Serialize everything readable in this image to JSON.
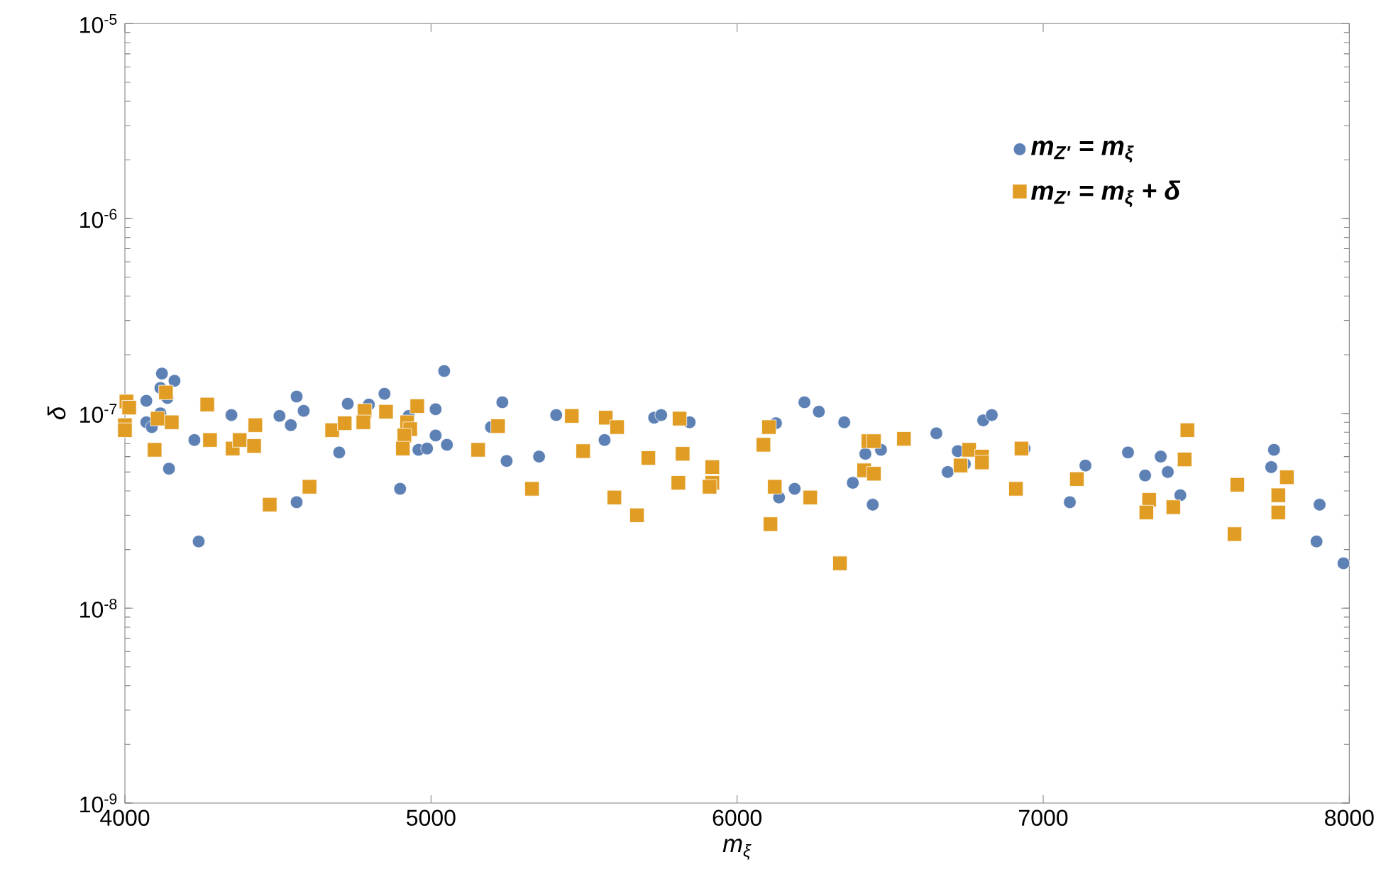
{
  "chart_data": {
    "type": "scatter",
    "xlabel": "m$_{ξ}$",
    "ylabel": "δ",
    "log": "y",
    "grid": false,
    "legend": "top right",
    "xlim": [
      4000,
      8000
    ],
    "xticks": [
      4000,
      5000,
      6000,
      7000,
      8000
    ],
    "ylim": [
      1e-09,
      1e-05
    ],
    "yticks": [
      {
        "value": 1e-09,
        "label": "10$^{-9}$"
      },
      {
        "value": 1e-08,
        "label": "10$^{-8}$"
      },
      {
        "value": 1e-07,
        "label": "10$^{-7}$"
      },
      {
        "value": 1e-06,
        "label": "10$^{-6}$"
      },
      {
        "value": 1e-05,
        "label": "10$^{-5}$"
      }
    ],
    "series": [
      {
        "name": "m$_{Z'}$ = m$_{ξ}$",
        "color": "#5e81b5",
        "marker": "circle",
        "x": [
          4121,
          4162,
          4116,
          4139,
          4070,
          4070,
          4088,
          4116,
          4144,
          4227,
          4241,
          4348,
          4505,
          4542,
          4561,
          4584,
          4561,
          4700,
          4728,
          4797,
          4848,
          4927,
          4899,
          4959,
          4987,
          5015,
          5052,
          5015,
          5043,
          5233,
          5196,
          5247,
          5353,
          5409,
          5567,
          5729,
          5752,
          5845,
          6127,
          6220,
          6267,
          6350,
          6419,
          6470,
          6378,
          6443,
          6137,
          6188,
          6651,
          6688,
          6721,
          6744,
          6804,
          6832,
          6939,
          7138,
          7087,
          7277,
          7384,
          7333,
          7407,
          7448,
          7754,
          7745,
          7903,
          7893,
          7981
        ],
        "values": [
          1.6e-07,
          1.47e-07,
          1.35e-07,
          1.2e-07,
          1.16e-07,
          9e-08,
          8.5e-08,
          1e-07,
          5.2e-08,
          7.3e-08,
          2.2e-08,
          9.8e-08,
          9.7e-08,
          8.7e-08,
          1.22e-07,
          1.03e-07,
          3.5e-08,
          6.3e-08,
          1.12e-07,
          1.11e-07,
          1.26e-07,
          9.7e-08,
          4.1e-08,
          6.5e-08,
          6.6e-08,
          7.7e-08,
          6.9e-08,
          1.05e-07,
          1.65e-07,
          1.14e-07,
          8.5e-08,
          5.7e-08,
          6e-08,
          9.8e-08,
          7.3e-08,
          9.5e-08,
          9.8e-08,
          9e-08,
          8.9e-08,
          1.14e-07,
          1.02e-07,
          9e-08,
          6.2e-08,
          6.5e-08,
          4.4e-08,
          3.4e-08,
          3.7e-08,
          4.1e-08,
          7.9e-08,
          5e-08,
          6.4e-08,
          5.5e-08,
          9.2e-08,
          9.8e-08,
          6.6e-08,
          5.4e-08,
          3.5e-08,
          6.3e-08,
          6e-08,
          4.8e-08,
          5e-08,
          3.8e-08,
          6.5e-08,
          5.3e-08,
          3.4e-08,
          2.2e-08,
          1.7e-08
        ]
      },
      {
        "name": "m$_{Z'}$ = m$_{ξ}$ + δ",
        "color": "#e19c24",
        "marker": "square",
        "x": [
          4005,
          4014,
          4000,
          4000,
          4134,
          4107,
          4153,
          4097,
          4269,
          4278,
          4352,
          4375,
          4422,
          4426,
          4473,
          4603,
          4677,
          4718,
          4783,
          4779,
          4853,
          4922,
          4932,
          4913,
          4908,
          4955,
          5154,
          5219,
          5330,
          5460,
          5571,
          5608,
          5497,
          5599,
          5673,
          5710,
          5812,
          5822,
          5808,
          5919,
          5919,
          5910,
          6104,
          6086,
          6123,
          6109,
          6239,
          6336,
          6429,
          6447,
          6415,
          6447,
          6545,
          6758,
          6730,
          6800,
          6800,
          6929,
          6911,
          7110,
          7346,
          7337,
          7425,
          7471,
          7462,
          7634,
          7625,
          7796,
          7768,
          7768
        ],
        "values": [
          1.15e-07,
          1.07e-07,
          8.7e-08,
          8.2e-08,
          1.28e-07,
          9.4e-08,
          9e-08,
          6.5e-08,
          1.11e-07,
          7.3e-08,
          6.6e-08,
          7.3e-08,
          6.8e-08,
          8.7e-08,
          3.4e-08,
          4.2e-08,
          8.2e-08,
          8.9e-08,
          1.03e-07,
          9e-08,
          1.02e-07,
          9e-08,
          8.3e-08,
          7.7e-08,
          6.6e-08,
          1.09e-07,
          6.5e-08,
          8.6e-08,
          4.1e-08,
          9.7e-08,
          9.5e-08,
          8.5e-08,
          6.4e-08,
          3.7e-08,
          3e-08,
          5.9e-08,
          9.4e-08,
          6.2e-08,
          4.4e-08,
          5.3e-08,
          4.4e-08,
          4.2e-08,
          8.5e-08,
          6.9e-08,
          4.2e-08,
          2.7e-08,
          3.7e-08,
          1.7e-08,
          7.2e-08,
          7.2e-08,
          5.1e-08,
          4.9e-08,
          7.4e-08,
          6.5e-08,
          5.4e-08,
          6e-08,
          5.6e-08,
          6.6e-08,
          4.1e-08,
          4.6e-08,
          3.6e-08,
          3.1e-08,
          3.3e-08,
          8.2e-08,
          5.8e-08,
          4.3e-08,
          2.4e-08,
          4.7e-08,
          3.8e-08,
          3.1e-08
        ]
      }
    ]
  }
}
